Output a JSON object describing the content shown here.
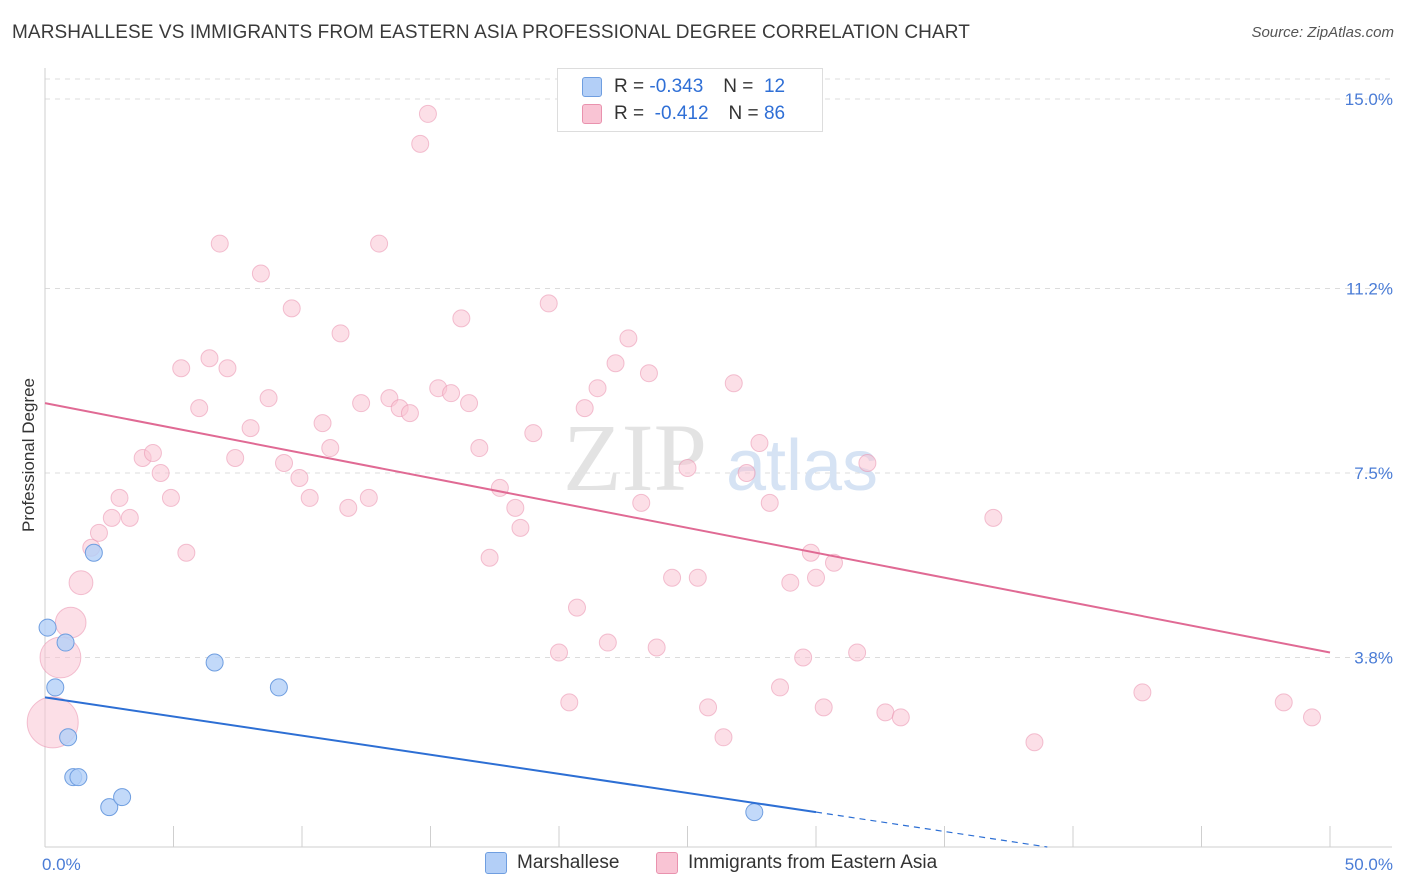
{
  "title": "MARSHALLESE VS IMMIGRANTS FROM EASTERN ASIA PROFESSIONAL DEGREE CORRELATION CHART",
  "source": "Source: ZipAtlas.com",
  "watermark": {
    "zip": "ZIP",
    "atlas": "atlas"
  },
  "legend": {
    "rows": [
      {
        "r_label": "R =",
        "r_value": "-0.343",
        "n_label": "N =",
        "n_value": "12",
        "color": "#b3cff7"
      },
      {
        "r_label": "R =",
        "r_value": "-0.412",
        "n_label": "N =",
        "n_value": "86",
        "color": "#f9c4d4"
      }
    ]
  },
  "bottom_legend": [
    "Marshallese",
    "Immigrants from Eastern Asia"
  ],
  "chart_data": {
    "type": "scatter",
    "title": "MARSHALLESE VS IMMIGRANTS FROM EASTERN ASIA PROFESSIONAL DEGREE CORRELATION CHART",
    "xlabel": "",
    "ylabel": "Professional Degree",
    "xlim": [
      0,
      50
    ],
    "ylim": [
      0,
      15.4
    ],
    "x_tick_labels": [
      "0.0%",
      "50.0%"
    ],
    "y_ticks": [
      3.8,
      7.5,
      11.2,
      15.0
    ],
    "y_tick_labels": [
      "3.8%",
      "7.5%",
      "11.2%",
      "15.0%"
    ],
    "grid": "horizontal dashed",
    "legend_position": "top-center",
    "colors": {
      "blue": "#6f9ee0",
      "blue_fill": "#b3cff7",
      "blue_line": "#2d6fd4",
      "pink": "#e992ae",
      "pink_fill": "#f9c4d4",
      "pink_line": "#e06a94"
    },
    "series": [
      {
        "name": "Marshallese",
        "points": [
          {
            "x": 0.1,
            "y": 4.4,
            "s": 1
          },
          {
            "x": 0.4,
            "y": 3.2,
            "s": 1
          },
          {
            "x": 0.8,
            "y": 4.1,
            "s": 1
          },
          {
            "x": 0.9,
            "y": 2.2,
            "s": 1
          },
          {
            "x": 1.1,
            "y": 1.4,
            "s": 1
          },
          {
            "x": 1.3,
            "y": 1.4,
            "s": 1
          },
          {
            "x": 1.9,
            "y": 5.9,
            "s": 1
          },
          {
            "x": 2.5,
            "y": 0.8,
            "s": 1
          },
          {
            "x": 3.0,
            "y": 1.0,
            "s": 1
          },
          {
            "x": 6.6,
            "y": 3.7,
            "s": 1
          },
          {
            "x": 9.1,
            "y": 3.2,
            "s": 1
          },
          {
            "x": 27.6,
            "y": 0.7,
            "s": 1
          }
        ],
        "trend": {
          "x1": 0,
          "y1": 3.0,
          "x2": 30.0,
          "y2": 0.7,
          "dashed_to_x": 39.0,
          "dashed_to_y": 0.0
        }
      },
      {
        "name": "Immigrants from Eastern Asia",
        "points": [
          {
            "x": 0.3,
            "y": 2.5,
            "s": 3
          },
          {
            "x": 0.6,
            "y": 3.8,
            "s": 2.4
          },
          {
            "x": 1.0,
            "y": 4.5,
            "s": 1.8
          },
          {
            "x": 1.4,
            "y": 5.3,
            "s": 1.4
          },
          {
            "x": 1.8,
            "y": 6.0,
            "s": 1
          },
          {
            "x": 2.1,
            "y": 6.3,
            "s": 1
          },
          {
            "x": 2.6,
            "y": 6.6,
            "s": 1
          },
          {
            "x": 2.9,
            "y": 7.0,
            "s": 1
          },
          {
            "x": 3.3,
            "y": 6.6,
            "s": 1
          },
          {
            "x": 3.8,
            "y": 7.8,
            "s": 1
          },
          {
            "x": 4.2,
            "y": 7.9,
            "s": 1
          },
          {
            "x": 4.5,
            "y": 7.5,
            "s": 1
          },
          {
            "x": 4.9,
            "y": 7.0,
            "s": 1
          },
          {
            "x": 5.3,
            "y": 9.6,
            "s": 1
          },
          {
            "x": 5.5,
            "y": 5.9,
            "s": 1
          },
          {
            "x": 6.0,
            "y": 8.8,
            "s": 1
          },
          {
            "x": 6.4,
            "y": 9.8,
            "s": 1
          },
          {
            "x": 6.8,
            "y": 12.1,
            "s": 1
          },
          {
            "x": 7.1,
            "y": 9.6,
            "s": 1
          },
          {
            "x": 7.4,
            "y": 7.8,
            "s": 1
          },
          {
            "x": 8.0,
            "y": 8.4,
            "s": 1
          },
          {
            "x": 8.4,
            "y": 11.5,
            "s": 1
          },
          {
            "x": 8.7,
            "y": 9.0,
            "s": 1
          },
          {
            "x": 9.3,
            "y": 7.7,
            "s": 1
          },
          {
            "x": 9.6,
            "y": 10.8,
            "s": 1
          },
          {
            "x": 9.9,
            "y": 7.4,
            "s": 1
          },
          {
            "x": 10.3,
            "y": 7.0,
            "s": 1
          },
          {
            "x": 10.8,
            "y": 8.5,
            "s": 1
          },
          {
            "x": 11.1,
            "y": 8.0,
            "s": 1
          },
          {
            "x": 11.5,
            "y": 10.3,
            "s": 1
          },
          {
            "x": 11.8,
            "y": 6.8,
            "s": 1
          },
          {
            "x": 12.3,
            "y": 8.9,
            "s": 1
          },
          {
            "x": 12.6,
            "y": 7.0,
            "s": 1
          },
          {
            "x": 13.0,
            "y": 12.1,
            "s": 1
          },
          {
            "x": 13.4,
            "y": 9.0,
            "s": 1
          },
          {
            "x": 13.8,
            "y": 8.8,
            "s": 1
          },
          {
            "x": 14.2,
            "y": 8.7,
            "s": 1
          },
          {
            "x": 14.6,
            "y": 14.1,
            "s": 1
          },
          {
            "x": 14.9,
            "y": 14.7,
            "s": 1
          },
          {
            "x": 15.3,
            "y": 9.2,
            "s": 1
          },
          {
            "x": 15.8,
            "y": 9.1,
            "s": 1
          },
          {
            "x": 16.2,
            "y": 10.6,
            "s": 1
          },
          {
            "x": 16.5,
            "y": 8.9,
            "s": 1
          },
          {
            "x": 16.9,
            "y": 8.0,
            "s": 1
          },
          {
            "x": 17.3,
            "y": 5.8,
            "s": 1
          },
          {
            "x": 17.7,
            "y": 7.2,
            "s": 1
          },
          {
            "x": 18.3,
            "y": 6.8,
            "s": 1
          },
          {
            "x": 18.5,
            "y": 6.4,
            "s": 1
          },
          {
            "x": 19.0,
            "y": 8.3,
            "s": 1
          },
          {
            "x": 19.6,
            "y": 10.9,
            "s": 1
          },
          {
            "x": 20.0,
            "y": 3.9,
            "s": 1
          },
          {
            "x": 20.4,
            "y": 2.9,
            "s": 1
          },
          {
            "x": 20.7,
            "y": 4.8,
            "s": 1
          },
          {
            "x": 21.0,
            "y": 8.8,
            "s": 1
          },
          {
            "x": 21.5,
            "y": 9.2,
            "s": 1
          },
          {
            "x": 21.9,
            "y": 4.1,
            "s": 1
          },
          {
            "x": 22.2,
            "y": 9.7,
            "s": 1
          },
          {
            "x": 22.7,
            "y": 10.2,
            "s": 1
          },
          {
            "x": 23.2,
            "y": 6.9,
            "s": 1
          },
          {
            "x": 23.5,
            "y": 9.5,
            "s": 1
          },
          {
            "x": 23.8,
            "y": 4.0,
            "s": 1
          },
          {
            "x": 24.4,
            "y": 5.4,
            "s": 1
          },
          {
            "x": 25.0,
            "y": 7.6,
            "s": 1
          },
          {
            "x": 25.4,
            "y": 5.4,
            "s": 1
          },
          {
            "x": 25.8,
            "y": 2.8,
            "s": 1
          },
          {
            "x": 26.4,
            "y": 2.2,
            "s": 1
          },
          {
            "x": 26.8,
            "y": 9.3,
            "s": 1
          },
          {
            "x": 27.3,
            "y": 7.5,
            "s": 1
          },
          {
            "x": 27.8,
            "y": 8.1,
            "s": 1
          },
          {
            "x": 28.2,
            "y": 6.9,
            "s": 1
          },
          {
            "x": 28.6,
            "y": 3.2,
            "s": 1
          },
          {
            "x": 29.0,
            "y": 5.3,
            "s": 1
          },
          {
            "x": 29.5,
            "y": 3.8,
            "s": 1
          },
          {
            "x": 29.8,
            "y": 5.9,
            "s": 1
          },
          {
            "x": 30.0,
            "y": 5.4,
            "s": 1
          },
          {
            "x": 30.3,
            "y": 2.8,
            "s": 1
          },
          {
            "x": 30.7,
            "y": 5.7,
            "s": 1
          },
          {
            "x": 31.6,
            "y": 3.9,
            "s": 1
          },
          {
            "x": 32.0,
            "y": 7.7,
            "s": 1
          },
          {
            "x": 32.7,
            "y": 2.7,
            "s": 1
          },
          {
            "x": 33.3,
            "y": 2.6,
            "s": 1
          },
          {
            "x": 36.9,
            "y": 6.6,
            "s": 1
          },
          {
            "x": 38.5,
            "y": 2.1,
            "s": 1
          },
          {
            "x": 42.7,
            "y": 3.1,
            "s": 1
          },
          {
            "x": 48.2,
            "y": 2.9,
            "s": 1
          },
          {
            "x": 49.3,
            "y": 2.6,
            "s": 1
          }
        ],
        "trend": {
          "x1": 0,
          "y1": 8.9,
          "x2": 50.0,
          "y2": 3.9
        }
      }
    ]
  }
}
